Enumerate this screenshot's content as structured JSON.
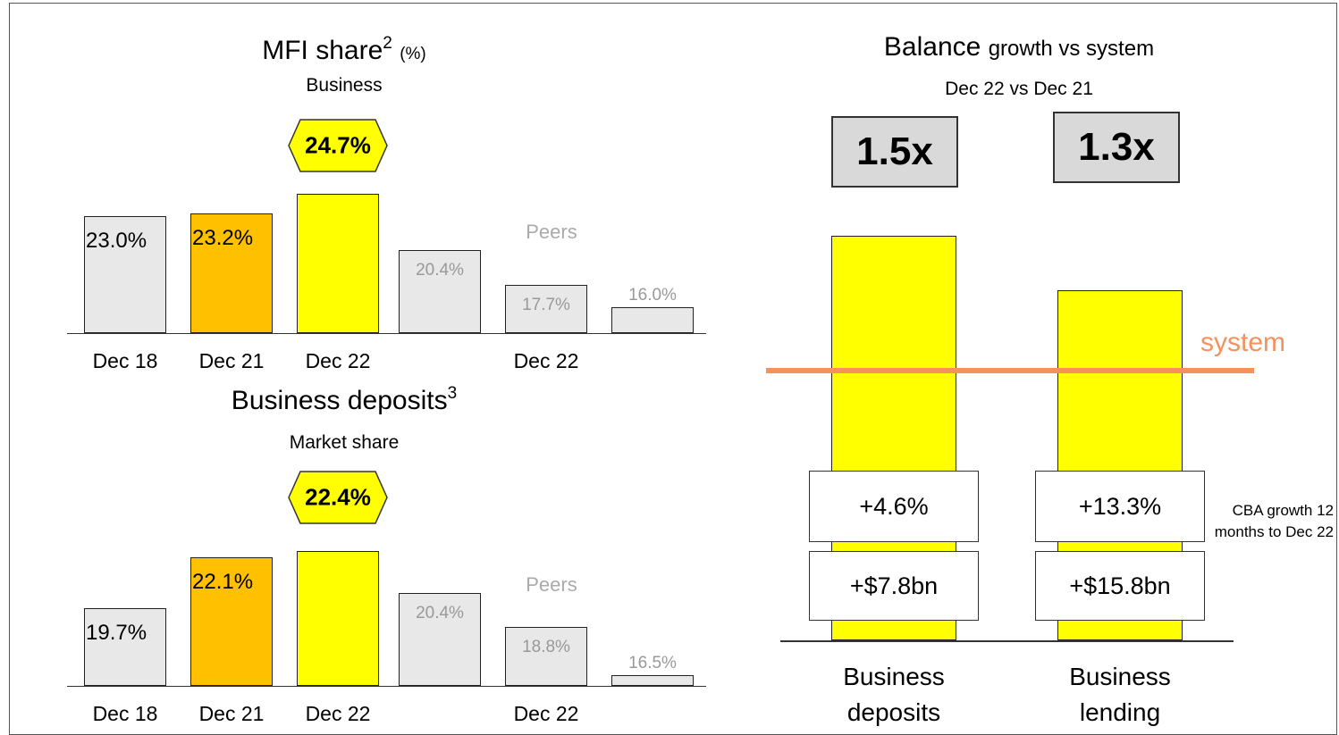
{
  "chart_data": [
    {
      "type": "bar",
      "title": "MFI share",
      "title_sup": "2",
      "title_note": "(%)",
      "subtitle": "Business",
      "annotation": "Peers",
      "categories": [
        "Dec 18",
        "Dec 21",
        "Dec 22",
        null,
        "Dec 22",
        null
      ],
      "values": [
        23.0,
        23.2,
        24.7,
        20.4,
        17.7,
        16.0
      ],
      "value_labels": [
        "23.0%",
        "23.2%",
        "24.7%",
        "20.4%",
        "17.7%",
        "16.0%"
      ],
      "colors": [
        "#e8e8e8",
        "#ffc000",
        "#ffff00",
        "#e8e8e8",
        "#e8e8e8",
        "#e8e8e8"
      ],
      "ylim": [
        14,
        25
      ]
    },
    {
      "type": "bar",
      "title": "Business deposits",
      "title_sup": "3",
      "subtitle": "Market share",
      "annotation": "Peers",
      "categories": [
        "Dec 18",
        "Dec 21",
        "Dec 22",
        null,
        "Dec 22",
        null
      ],
      "values": [
        19.7,
        22.1,
        22.4,
        20.4,
        18.8,
        16.5
      ],
      "value_labels": [
        "19.7%",
        "22.1%",
        "22.4%",
        "20.4%",
        "18.8%",
        "16.5%"
      ],
      "colors": [
        "#e8e8e8",
        "#ffc000",
        "#ffff00",
        "#e8e8e8",
        "#e8e8e8",
        "#e8e8e8"
      ],
      "ylim": [
        16,
        22.8
      ]
    },
    {
      "type": "growth",
      "title": "Balance",
      "title_note": "growth vs system",
      "subtitle": "Dec 22 vs Dec 21",
      "categories": [
        "Business deposits",
        "Business lending"
      ],
      "values": [
        1.5,
        1.3
      ],
      "value_labels": [
        "1.5x",
        "1.3x"
      ],
      "color": "#ffff00",
      "ylim": [
        0,
        1.6
      ],
      "reference": {
        "label": "system",
        "value": 1,
        "color": "#f4915c"
      },
      "growth": {
        "values": [
          4.6,
          13.3
        ],
        "value_labels": [
          "+4.6%",
          "+13.3%"
        ]
      },
      "growth_amount": {
        "values": [
          7.8,
          15.8
        ],
        "value_labels": [
          "+$7.8bn",
          "+$15.8bn"
        ]
      },
      "note": "CBA growth 12 months to Dec 22"
    }
  ]
}
